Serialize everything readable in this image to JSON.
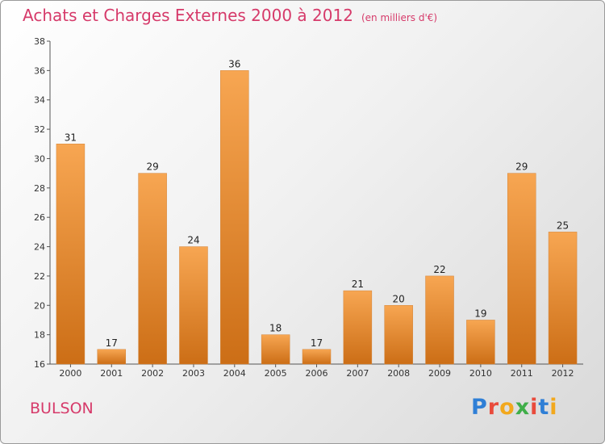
{
  "header": {
    "title": "Achats et Charges Externes 2000 à 2012",
    "subtitle": "(en milliers d'€)"
  },
  "footer": {
    "commune": "BULSON",
    "logo": "Proxiti"
  },
  "colors": {
    "title": "#d63a6a",
    "bar_top": "#f7a652",
    "bar_bottom": "#cc6e16"
  },
  "chart_data": {
    "type": "bar",
    "title": "Achats et Charges Externes 2000 à 2012",
    "subtitle": "(en milliers d'€)",
    "categories": [
      "2000",
      "2001",
      "2002",
      "2003",
      "2004",
      "2005",
      "2006",
      "2007",
      "2008",
      "2009",
      "2010",
      "2011",
      "2012"
    ],
    "values": [
      31,
      17,
      29,
      24,
      36,
      18,
      17,
      21,
      20,
      22,
      19,
      29,
      25
    ],
    "ylim": [
      16,
      38
    ],
    "yticks": [
      16,
      18,
      20,
      22,
      24,
      26,
      28,
      30,
      32,
      34,
      36,
      38
    ],
    "grid": false,
    "legend": "none"
  }
}
